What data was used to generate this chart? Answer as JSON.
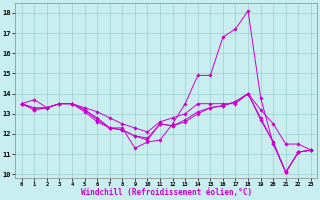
{
  "xlabel": "Windchill (Refroidissement éolien,°C)",
  "background_color": "#c8eef0",
  "line_color": "#cc00cc",
  "xlim": [
    -0.5,
    23.5
  ],
  "ylim": [
    9.8,
    18.5
  ],
  "yticks": [
    10,
    11,
    12,
    13,
    14,
    15,
    16,
    17,
    18
  ],
  "xticks": [
    0,
    1,
    2,
    3,
    4,
    5,
    6,
    7,
    8,
    9,
    10,
    11,
    12,
    13,
    14,
    15,
    16,
    17,
    18,
    19,
    20,
    21,
    22,
    23
  ],
  "series": [
    {
      "x": [
        0,
        1,
        2,
        3,
        4,
        5,
        6,
        7,
        8,
        9,
        10,
        11,
        12,
        13,
        14,
        15,
        16,
        17,
        18,
        19,
        20,
        21,
        22,
        23
      ],
      "y": [
        13.5,
        13.7,
        13.3,
        13.5,
        13.5,
        13.2,
        12.8,
        12.3,
        12.3,
        11.3,
        11.6,
        11.7,
        12.5,
        13.5,
        14.9,
        14.9,
        16.8,
        17.2,
        18.1,
        13.8,
        11.5,
        10.1,
        11.1,
        11.2
      ]
    },
    {
      "x": [
        0,
        1,
        2,
        3,
        4,
        5,
        6,
        7,
        8,
        9,
        10,
        11,
        12,
        13,
        14,
        15,
        16,
        17,
        18,
        19,
        20,
        21,
        22,
        23
      ],
      "y": [
        13.5,
        13.3,
        13.3,
        13.5,
        13.5,
        13.3,
        13.1,
        12.8,
        12.5,
        12.3,
        12.1,
        12.6,
        12.8,
        13.0,
        13.5,
        13.5,
        13.5,
        13.5,
        14.0,
        13.2,
        12.5,
        11.5,
        11.5,
        11.2
      ]
    },
    {
      "x": [
        0,
        1,
        2,
        3,
        4,
        5,
        6,
        7,
        8,
        9,
        10,
        11,
        12,
        13,
        14,
        15,
        16,
        17,
        18,
        19,
        20,
        21,
        22,
        23
      ],
      "y": [
        13.5,
        13.2,
        13.3,
        13.5,
        13.5,
        13.2,
        12.7,
        12.3,
        12.2,
        11.9,
        11.8,
        12.5,
        12.4,
        12.7,
        13.1,
        13.3,
        13.4,
        13.6,
        14.0,
        12.8,
        11.6,
        10.1,
        11.1,
        11.2
      ]
    },
    {
      "x": [
        0,
        1,
        2,
        3,
        4,
        5,
        6,
        7,
        8,
        9,
        10,
        11,
        12,
        13,
        14,
        15,
        16,
        17,
        18,
        19,
        20,
        21,
        22,
        23
      ],
      "y": [
        13.5,
        13.2,
        13.3,
        13.5,
        13.5,
        13.1,
        12.6,
        12.3,
        12.2,
        11.9,
        11.7,
        12.5,
        12.4,
        12.6,
        13.0,
        13.3,
        13.4,
        13.6,
        14.0,
        12.7,
        11.6,
        10.1,
        11.1,
        11.2
      ]
    }
  ]
}
